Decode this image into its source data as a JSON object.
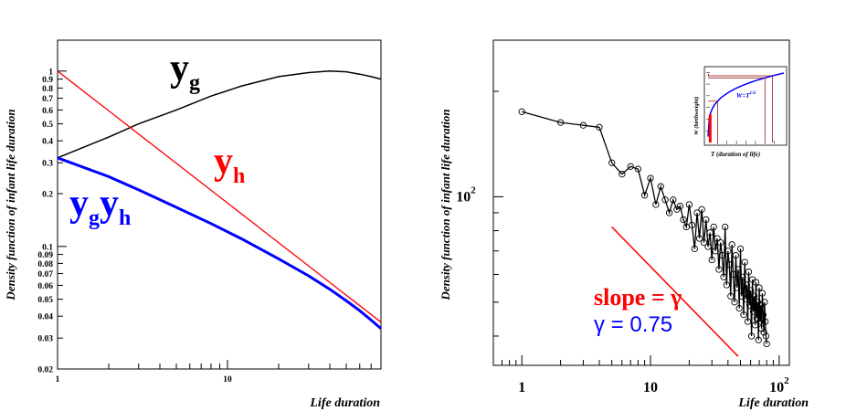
{
  "chart_data": [
    {
      "type": "line",
      "scale": {
        "x": "log",
        "y": "log"
      },
      "xlim": [
        1,
        80
      ],
      "ylim": [
        0.02,
        1.5
      ],
      "xlabel": "Life duration",
      "ylabel": "Density function of infant life duration",
      "x_ticks": [
        "1",
        "10"
      ],
      "y_ticks": [
        "0.02",
        "0.03",
        "0.04",
        "0.05",
        "0.06",
        "0.07",
        "0.08",
        "0.09",
        "0.1",
        "0.2",
        "0.3",
        "0.4",
        "0.5",
        "0.6",
        "0.7",
        "0.8",
        "0.9",
        "1"
      ],
      "series": [
        {
          "name": "yg",
          "color": "#000000",
          "x": [
            1,
            2,
            3,
            5,
            8,
            12,
            20,
            30,
            40,
            50,
            60,
            70,
            80
          ],
          "y": [
            0.32,
            0.42,
            0.5,
            0.6,
            0.72,
            0.82,
            0.93,
            0.98,
            1.0,
            0.99,
            0.96,
            0.93,
            0.9
          ]
        },
        {
          "name": "yh",
          "color": "#ff0000",
          "x": [
            1,
            80
          ],
          "y": [
            1.0,
            0.037
          ]
        },
        {
          "name": "ygyh",
          "color": "#0000ff",
          "x": [
            1,
            2,
            3,
            5,
            8,
            12,
            20,
            30,
            40,
            50,
            60,
            70,
            80
          ],
          "y": [
            0.32,
            0.25,
            0.21,
            0.167,
            0.135,
            0.111,
            0.085,
            0.068,
            0.057,
            0.049,
            0.043,
            0.038,
            0.034
          ]
        }
      ],
      "annotations": [
        {
          "text": "y",
          "sub": "g",
          "color": "#000000"
        },
        {
          "text": "y",
          "sub": "h",
          "color": "#ff0000"
        },
        {
          "text": "y",
          "sub": "g",
          "text2": "y",
          "sub2": "h",
          "color": "#0000ff"
        }
      ]
    },
    {
      "type": "line",
      "scale": {
        "x": "log",
        "y": "log"
      },
      "xlim": [
        0.6,
        120
      ],
      "ylim": [
        33,
        280
      ],
      "xlabel": "Life duration",
      "ylabel": "Density function of infant life duration",
      "x_ticks": [
        {
          "value": 1,
          "label": "1"
        },
        {
          "value": 10,
          "label": "10"
        },
        {
          "value": 100,
          "label": "10",
          "exp": "2"
        }
      ],
      "y_ticks": [
        {
          "value": 100,
          "label": "10",
          "exp": "2"
        }
      ],
      "series": [
        {
          "name": "data",
          "color": "#000000",
          "marker": "circle",
          "x": [
            1,
            2,
            3,
            4,
            5,
            6,
            7,
            8,
            9,
            10,
            11,
            12,
            13,
            14,
            15,
            16,
            17,
            18,
            19,
            20,
            21,
            22,
            23,
            24,
            25,
            26,
            27,
            28,
            29,
            30,
            31,
            32,
            33,
            34,
            35,
            36,
            37,
            38,
            39,
            40,
            41,
            42,
            43,
            44,
            45,
            46,
            47,
            48,
            49,
            50,
            51,
            52,
            53,
            54,
            55,
            56,
            57,
            58,
            59,
            60,
            61,
            62,
            63,
            64,
            65,
            66,
            67,
            68,
            69,
            70,
            71,
            72,
            73,
            74,
            75,
            76,
            77,
            78,
            79,
            80
          ],
          "y": [
            175,
            163,
            160,
            158,
            125,
            116,
            122,
            120,
            101,
            113,
            95,
            107,
            98,
            90,
            98,
            92,
            94,
            86,
            82,
            95,
            83,
            71,
            90,
            76,
            92,
            74,
            86,
            72,
            79,
            66,
            82,
            70,
            76,
            62,
            74,
            68,
            59,
            82,
            56,
            70,
            64,
            52,
            73,
            60,
            50,
            68,
            55,
            62,
            48,
            71,
            52,
            59,
            46,
            65,
            51,
            56,
            44,
            61,
            49,
            54,
            40,
            58,
            47,
            52,
            43,
            57,
            45,
            50,
            39,
            55,
            44,
            49,
            42,
            53,
            46,
            41,
            50,
            44,
            40,
            38
          ]
        }
      ],
      "slope_line": {
        "x": [
          5,
          48
        ],
        "y": [
          82,
          35
        ],
        "color": "#ff0000"
      },
      "slope_label": "slope = γ",
      "gamma_label": "γ = 0.75",
      "inset": {
        "xlabel": "T (duration of life)",
        "ylabel": "W (birthweight)",
        "curve_label": "W=T",
        "curve_exp": "1/4",
        "curve_color": "#0000ff"
      }
    }
  ]
}
